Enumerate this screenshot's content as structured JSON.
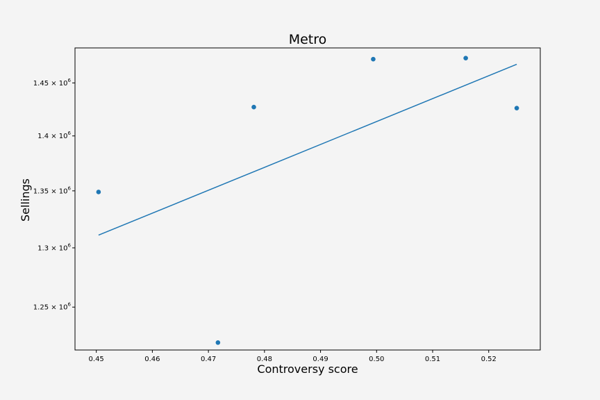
{
  "chart_data": {
    "type": "scatter",
    "title": "Metro",
    "xlabel": "Controversy score",
    "ylabel": "Sellings",
    "xlim": [
      0.4462,
      0.5292
    ],
    "ylim": [
      1215000,
      1484000
    ],
    "y_scale": "log",
    "grid": false,
    "colors": {
      "series": "#1f77b4",
      "background": "#f4f4f4",
      "axes": "#000000"
    },
    "x_ticks": [
      {
        "value": 0.45,
        "label": "0.45"
      },
      {
        "value": 0.46,
        "label": "0.46"
      },
      {
        "value": 0.47,
        "label": "0.47"
      },
      {
        "value": 0.48,
        "label": "0.48"
      },
      {
        "value": 0.49,
        "label": "0.49"
      },
      {
        "value": 0.5,
        "label": "0.50"
      },
      {
        "value": 0.51,
        "label": "0.51"
      },
      {
        "value": 0.52,
        "label": "0.52"
      }
    ],
    "y_ticks": [
      {
        "value": 1250000,
        "mantissa": "1.25",
        "exp": "6"
      },
      {
        "value": 1300000,
        "mantissa": "1.3",
        "exp": "6"
      },
      {
        "value": 1350000,
        "mantissa": "1.35",
        "exp": "6"
      },
      {
        "value": 1400000,
        "mantissa": "1.4",
        "exp": "6"
      },
      {
        "value": 1450000,
        "mantissa": "1.45",
        "exp": "6"
      }
    ],
    "points": [
      {
        "x": 0.4504,
        "y": 1349000
      },
      {
        "x": 0.4717,
        "y": 1221000
      },
      {
        "x": 0.4781,
        "y": 1427000
      },
      {
        "x": 0.4994,
        "y": 1473000
      },
      {
        "x": 0.5159,
        "y": 1474000
      },
      {
        "x": 0.525,
        "y": 1426000
      }
    ],
    "fit_line": [
      {
        "x": 0.4504,
        "y": 1311000
      },
      {
        "x": 0.525,
        "y": 1468000
      }
    ]
  }
}
